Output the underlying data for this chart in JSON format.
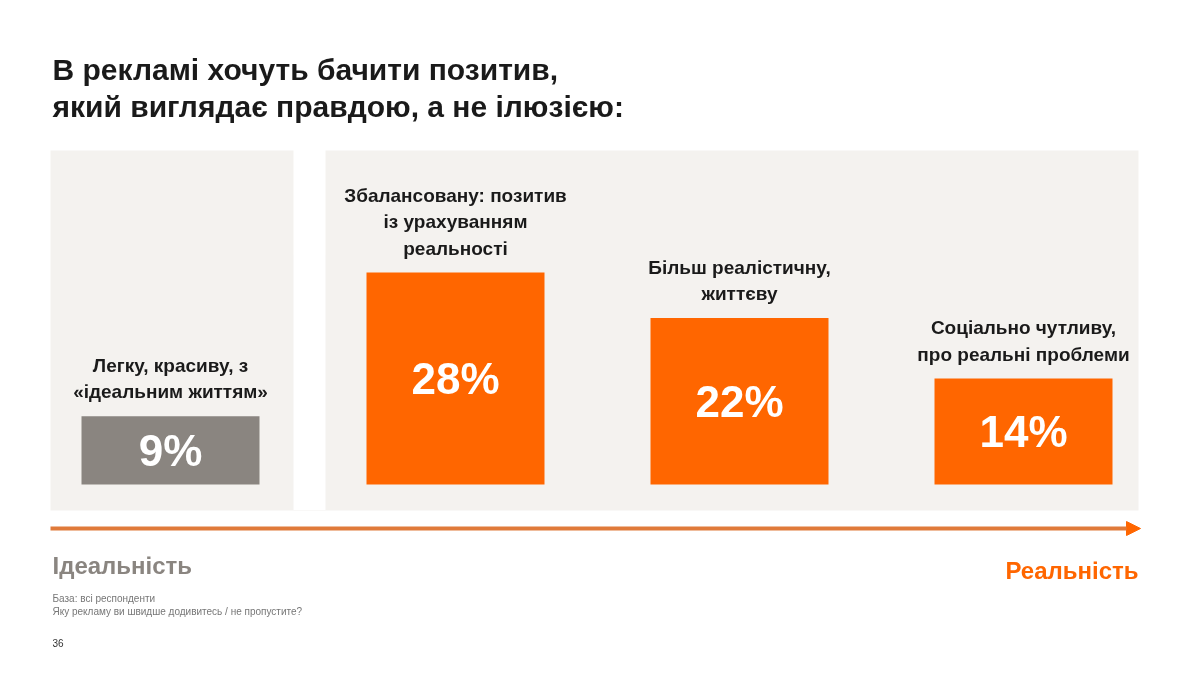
{
  "chart_data": {
    "type": "bar",
    "title": "В рекламі хочуть бачити позитив,\nякий виглядає правдою, а не ілюзією:",
    "categories": [
      "Легку, красиву, з\n«ідеальним життям»",
      "Збалансовану: позитив\nіз урахуванням\nреальності",
      "Більш реалістичну,\nжиттєву",
      "Соціально чутливу,\nпро реальні проблеми"
    ],
    "values": [
      9,
      28,
      22,
      14
    ],
    "colors": [
      "#8a8580",
      "#ff6600",
      "#ff6600",
      "#ff6600"
    ],
    "value_labels": [
      "9%",
      "28%",
      "22%",
      "14%"
    ],
    "annotations": [
      "Ідеальність",
      "Реальність",
      "База: всі респонденти",
      "Яку рекламу ви швидше додивитесь / не пропустите?",
      "36"
    ]
  }
}
